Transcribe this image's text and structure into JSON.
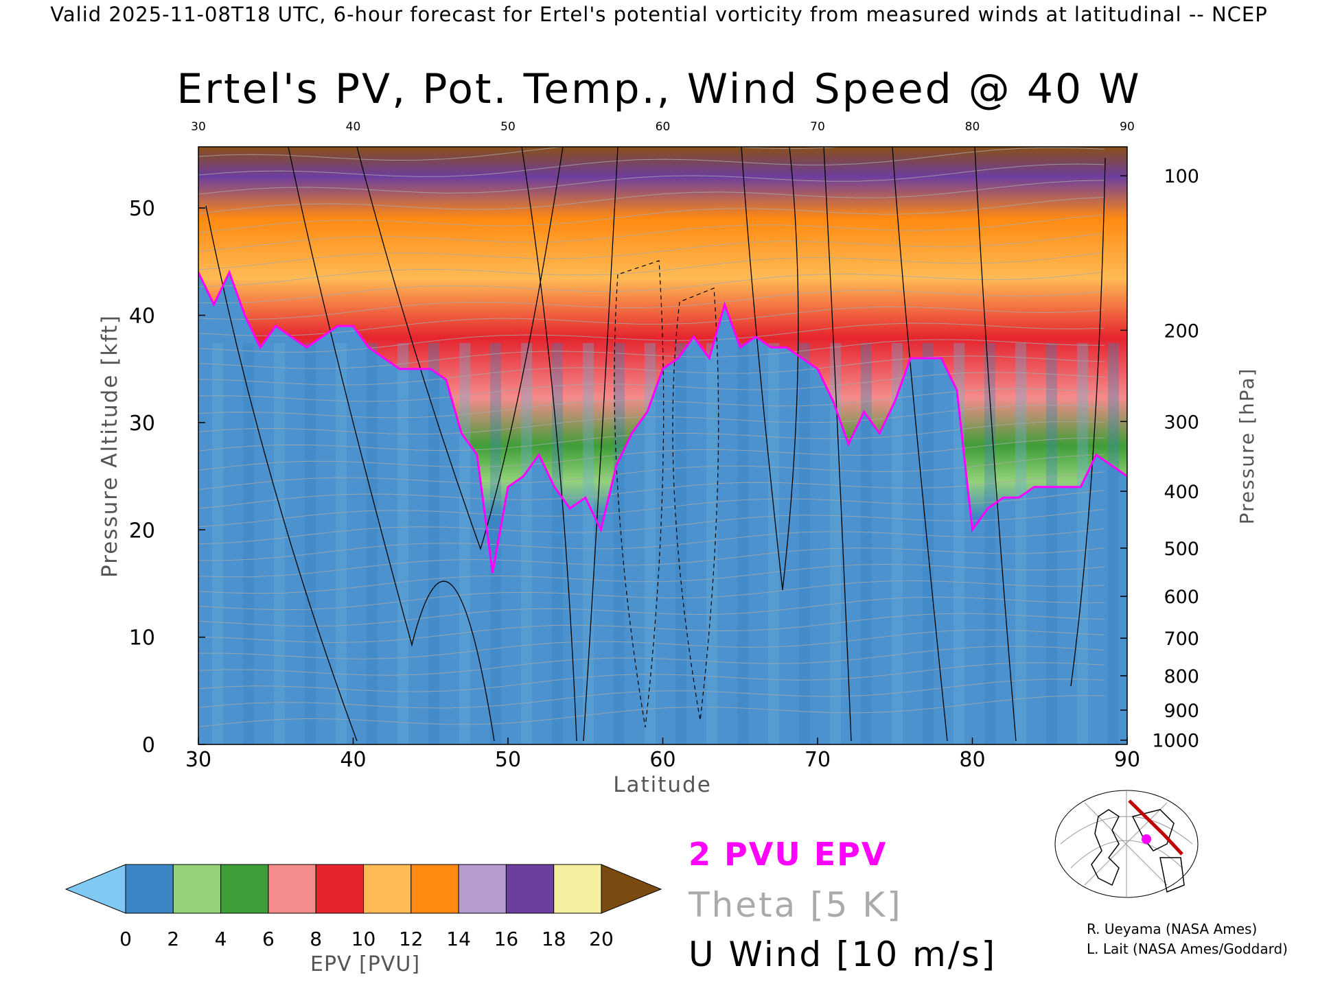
{
  "header": {
    "valid_line": "Valid 2025-11-08T18 UTC, 6-hour forecast for Ertel's potential vorticity from measured winds at latitudinal -- NCEP"
  },
  "chart_data": {
    "type": "heatmap",
    "title": "Ertel's PV, Pot. Temp., Wind Speed @ 40 W",
    "xlabel": "Latitude",
    "ylabel_left": "Pressure Altitude [kft]",
    "ylabel_right": "Pressure [hPa]",
    "xlim": [
      30,
      90
    ],
    "ylim": [
      0,
      55.7
    ],
    "x_ticks": [
      "30",
      "40",
      "50",
      "60",
      "70",
      "80",
      "90"
    ],
    "x_tick_values": [
      30,
      40,
      50,
      60,
      70,
      80,
      90
    ],
    "y_ticks": [
      "0",
      "10",
      "20",
      "30",
      "40",
      "50"
    ],
    "y_tick_values": [
      0,
      10,
      20,
      30,
      40,
      50
    ],
    "pressure_ticks": [
      "100",
      "200",
      "300",
      "400",
      "500",
      "600",
      "700",
      "800",
      "900",
      "1000"
    ],
    "pressure_tick_kft": [
      53,
      38.6,
      30.1,
      23.6,
      18.3,
      13.8,
      9.9,
      6.4,
      3.2,
      0.4
    ],
    "tropopause_2pvu_kft": {
      "lat": [
        30,
        31,
        32,
        33,
        34,
        35,
        36,
        37,
        38,
        39,
        40,
        41,
        42,
        43,
        44,
        45,
        46,
        47,
        48,
        49,
        50,
        51,
        52,
        53,
        54,
        55,
        56,
        57,
        58,
        59,
        60,
        61,
        62,
        63,
        64,
        65,
        66,
        67,
        68,
        69,
        70,
        71,
        72,
        73,
        74,
        75,
        76,
        77,
        78,
        79,
        80,
        81,
        82,
        83,
        84,
        85,
        86,
        87,
        88,
        89,
        90
      ],
      "kft": [
        44,
        41,
        44,
        40,
        37,
        39,
        38,
        37,
        38,
        39,
        39,
        37,
        36,
        35,
        35,
        35,
        34,
        29,
        27,
        16,
        24,
        25,
        27,
        24,
        22,
        23,
        20,
        26,
        29,
        31,
        35,
        36,
        38,
        36,
        41,
        37,
        38,
        37,
        37,
        36,
        35,
        32,
        28,
        31,
        29,
        32,
        36,
        36,
        36,
        33,
        20,
        22,
        23,
        23,
        24,
        24,
        24,
        24,
        27,
        26,
        25
      ]
    },
    "theta_contour_interval": "5 K",
    "wind_contour_interval": "10 m/s",
    "colorbar": {
      "label": "EPV [PVU]",
      "ticks": [
        "0",
        "2",
        "4",
        "6",
        "8",
        "10",
        "12",
        "14",
        "16",
        "18",
        "20"
      ],
      "range": [
        0,
        20
      ],
      "colors": [
        "#3d86c6",
        "#94d27a",
        "#3e9e37",
        "#f58c8c",
        "#e5242e",
        "#ffbb55",
        "#ff8a12",
        "#b59bd0",
        "#6c3e9e",
        "#f4f0a0"
      ],
      "under_color": "#7fc9f3",
      "over_color": "#7a4b10"
    }
  },
  "legend": {
    "epv_2pvu": "2 PVU EPV",
    "theta": "Theta [5 K]",
    "u_wind": "U Wind [10 m/s]",
    "epv_color": "#ff00ff",
    "theta_color": "#aaaaaa"
  },
  "credits": {
    "line1": "R. Ueyama (NASA Ames)",
    "line2": "L. Lait (NASA Ames/Goddard)"
  }
}
